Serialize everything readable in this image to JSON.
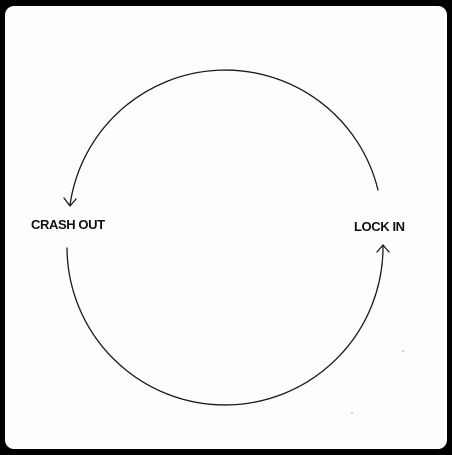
{
  "diagram": {
    "left_label": "CRASH OUT",
    "right_label": "LOCK IN"
  },
  "colors": {
    "background": "#fdfdfd",
    "frame": "#000000",
    "stroke": "#1a1a1a",
    "text": "#111111"
  }
}
